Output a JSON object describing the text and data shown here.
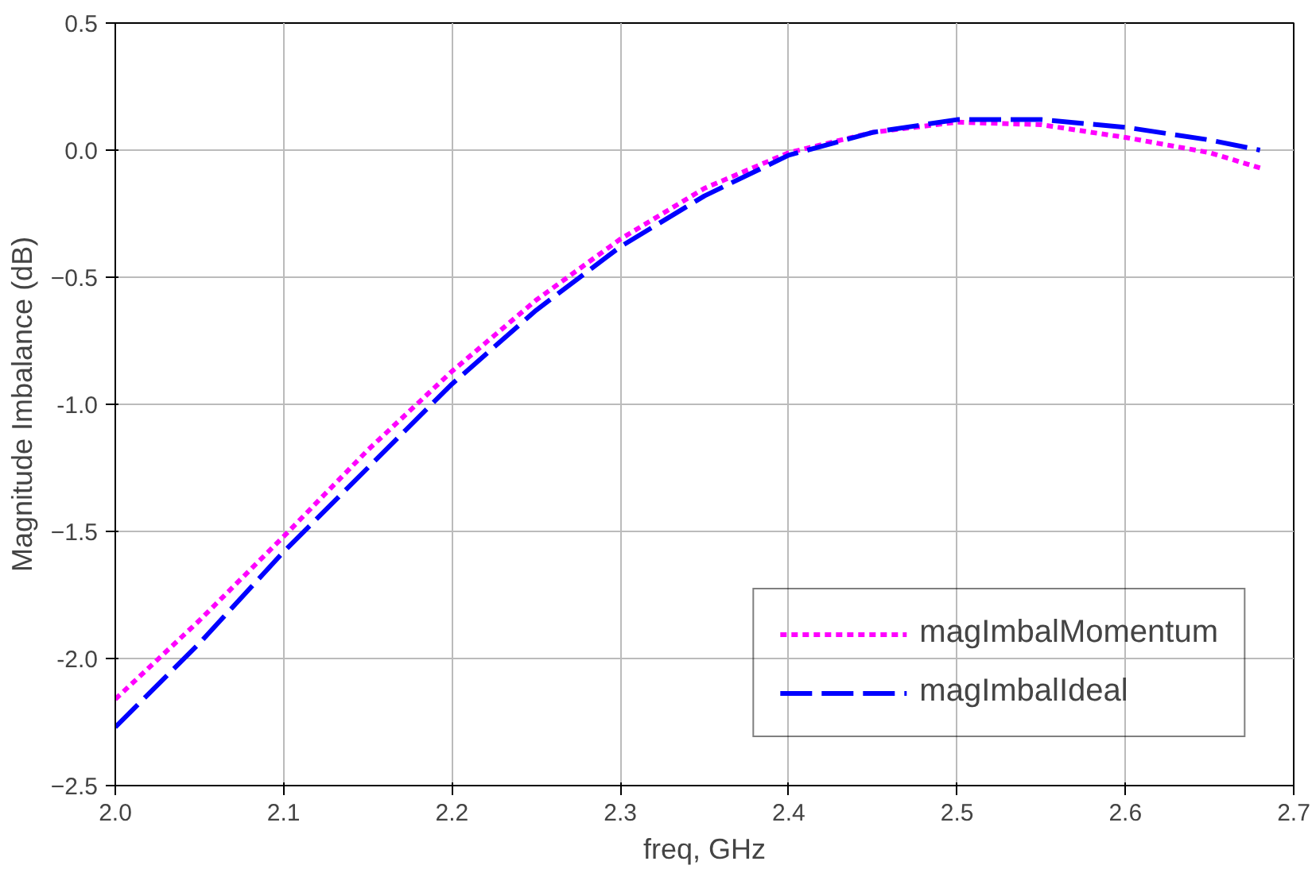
{
  "chart_data": {
    "type": "line",
    "xlabel": "freq, GHz",
    "ylabel": "Magnitude Imbalance (dB)",
    "x": [
      2.0,
      2.05,
      2.1,
      2.15,
      2.2,
      2.25,
      2.3,
      2.35,
      2.4,
      2.45,
      2.5,
      2.55,
      2.6,
      2.65,
      2.68
    ],
    "series": [
      {
        "name": "magImbalMomentum",
        "color": "#ff00ff",
        "line_style": "dotted",
        "values": [
          -2.16,
          -1.85,
          -1.52,
          -1.18,
          -0.87,
          -0.59,
          -0.35,
          -0.15,
          -0.01,
          0.07,
          0.11,
          0.1,
          0.05,
          -0.01,
          -0.07
        ]
      },
      {
        "name": "magImbalIdeal",
        "color": "#0000ff",
        "line_style": "dashed",
        "values": [
          -2.27,
          -1.94,
          -1.58,
          -1.25,
          -0.92,
          -0.63,
          -0.38,
          -0.18,
          -0.02,
          0.07,
          0.12,
          0.12,
          0.09,
          0.04,
          0.0
        ]
      }
    ],
    "xlim": [
      2.0,
      2.7
    ],
    "xticks": [
      {
        "value": 2.0,
        "label": "2.0"
      },
      2.1,
      2.2,
      2.3,
      2.4,
      2.5,
      2.6,
      2.7
    ],
    "ylim": [
      -2.5,
      0.5
    ],
    "yticks": [
      -2.5,
      {
        "value": -2.0,
        "label": "-2.0"
      },
      -1.5,
      {
        "value": -1.0,
        "label": "-1.0"
      },
      -0.5,
      {
        "value": 0.0,
        "label": "0.0"
      },
      0.5
    ],
    "grid": true,
    "legend": "bottom right"
  }
}
